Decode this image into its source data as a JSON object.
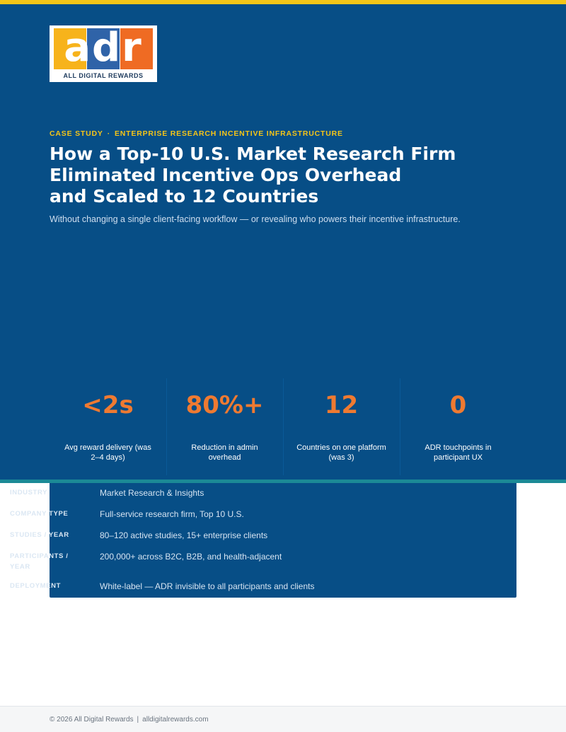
{
  "logo": {
    "letters": "adr",
    "tagline": "ALL DIGITAL REWARDS",
    "colors": [
      "#f7b31b",
      "#2f63a8",
      "#ef6b23"
    ]
  },
  "colors": {
    "hero_bg": "#074e86",
    "accent_yellow": "#f5c518",
    "accent_orange": "#ef7a31",
    "teal": "#1b8a96"
  },
  "eyebrow": {
    "part1": "CASE STUDY",
    "separator": "·",
    "part2": "ENTERPRISE RESEARCH INCENTIVE INFRASTRUCTURE"
  },
  "title": {
    "line1": "How a Top-10 U.S. Market Research Firm",
    "line2": "Eliminated Incentive Ops Overhead",
    "line3": "and Scaled to 12 Countries"
  },
  "subtitle": "Without changing a single client-facing workflow — or revealing who powers their incentive infrastructure.",
  "stats": [
    {
      "value": "<2s",
      "label": "Avg reward delivery (was 2–4 days)"
    },
    {
      "value": "80%+",
      "label": "Reduction in admin overhead"
    },
    {
      "value": "12",
      "label": "Countries on one platform (was 3)"
    },
    {
      "value": "0",
      "label": "ADR touchpoints in participant UX"
    }
  ],
  "profile": [
    {
      "key": "INDUSTRY",
      "value": "Market Research & Insights"
    },
    {
      "key": "COMPANY TYPE",
      "value": "Full-service research firm, Top 10 U.S."
    },
    {
      "key": "STUDIES / YEAR",
      "value": "80–120 active studies, 15+ enterprise clients"
    },
    {
      "key": "PARTICIPANTS / YEAR",
      "value": "200,000+ across B2C, B2B, and health-adjacent"
    },
    {
      "key": "DEPLOYMENT",
      "value": "White-label — ADR invisible to all participants and clients"
    }
  ],
  "footer": {
    "copyright": "© 2026 All Digital Rewards",
    "separator": "|",
    "website": "alldigitalrewards.com"
  }
}
